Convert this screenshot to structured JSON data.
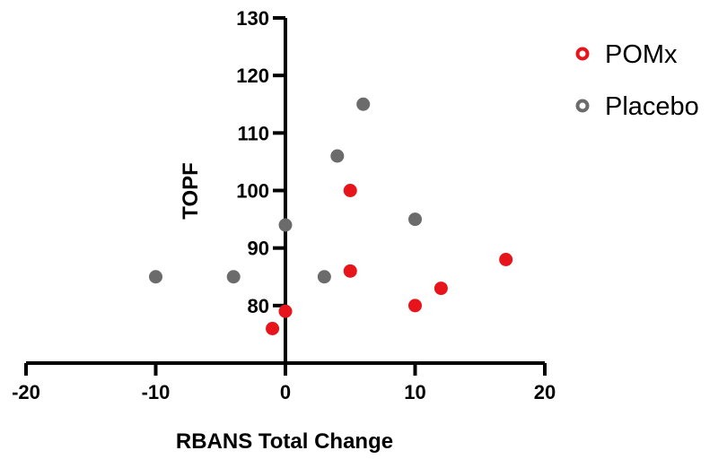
{
  "chart_data": {
    "type": "scatter",
    "xlabel": "RBANS Total Change",
    "ylabel": "TOPF",
    "xlim": [
      -20,
      20
    ],
    "ylim": [
      70,
      130
    ],
    "x_ticks": [
      -20,
      -10,
      0,
      10,
      20
    ],
    "y_ticks": [
      80,
      90,
      100,
      110,
      120,
      130
    ],
    "grid": false,
    "legend_position": "top-right",
    "series": [
      {
        "name": "POMx",
        "color": "#e8141b",
        "points": [
          {
            "x": 5,
            "y": 100
          },
          {
            "x": 5,
            "y": 86
          },
          {
            "x": 0,
            "y": 79
          },
          {
            "x": -1,
            "y": 76
          },
          {
            "x": 10,
            "y": 80
          },
          {
            "x": 12,
            "y": 83
          },
          {
            "x": 17,
            "y": 88
          }
        ]
      },
      {
        "name": "Placebo",
        "color": "#6b6b6b",
        "points": [
          {
            "x": 6,
            "y": 115
          },
          {
            "x": 4,
            "y": 106
          },
          {
            "x": 0,
            "y": 94
          },
          {
            "x": 10,
            "y": 95
          },
          {
            "x": -10,
            "y": 85
          },
          {
            "x": -4,
            "y": 85
          },
          {
            "x": 3,
            "y": 85
          }
        ]
      }
    ]
  }
}
